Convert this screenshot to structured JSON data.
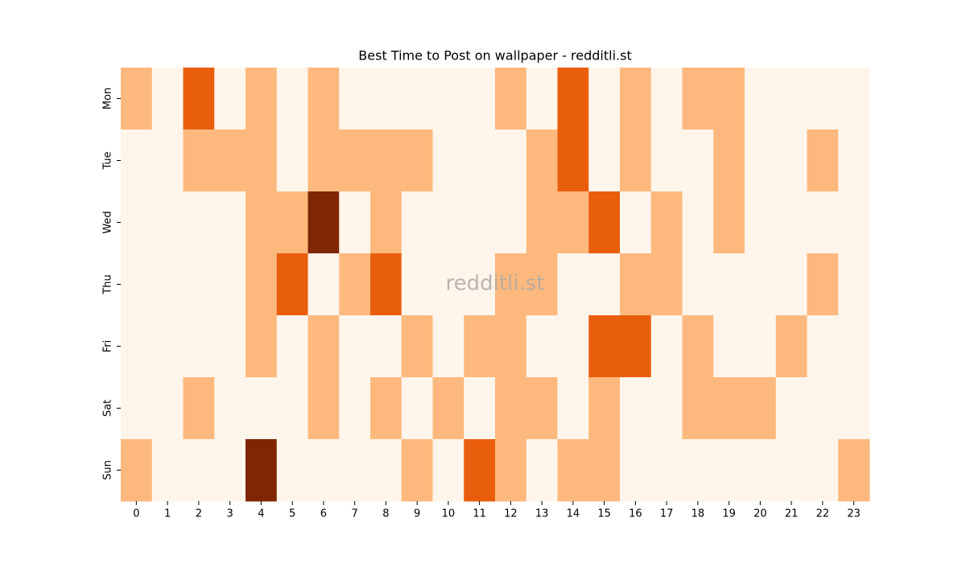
{
  "chart_data": {
    "type": "heatmap",
    "title": "Best Time to Post on wallpaper - redditli.st",
    "watermark": "redditli.st",
    "x_categories": [
      "0",
      "1",
      "2",
      "3",
      "4",
      "5",
      "6",
      "7",
      "8",
      "9",
      "10",
      "11",
      "12",
      "13",
      "14",
      "15",
      "16",
      "17",
      "18",
      "19",
      "20",
      "21",
      "22",
      "23"
    ],
    "y_categories": [
      "Mon",
      "Tue",
      "Wed",
      "Thu",
      "Fri",
      "Sat",
      "Sun"
    ],
    "colors": [
      "#fff5eb",
      "#fdb97d",
      "#e95e0d",
      "#7f2704"
    ],
    "values": [
      [
        1,
        0,
        2,
        0,
        1,
        0,
        1,
        0,
        0,
        0,
        0,
        0,
        1,
        0,
        2,
        0,
        1,
        0,
        1,
        1,
        0,
        0,
        0,
        0
      ],
      [
        0,
        0,
        1,
        1,
        1,
        0,
        1,
        1,
        1,
        1,
        0,
        0,
        0,
        1,
        2,
        0,
        1,
        0,
        0,
        1,
        0,
        0,
        1,
        0
      ],
      [
        0,
        0,
        0,
        0,
        1,
        1,
        3,
        0,
        1,
        0,
        0,
        0,
        0,
        1,
        1,
        2,
        0,
        1,
        0,
        1,
        0,
        0,
        0,
        0
      ],
      [
        0,
        0,
        0,
        0,
        1,
        2,
        0,
        1,
        2,
        0,
        0,
        0,
        1,
        1,
        0,
        0,
        1,
        1,
        0,
        0,
        0,
        0,
        1,
        0
      ],
      [
        0,
        0,
        0,
        0,
        1,
        0,
        1,
        0,
        0,
        1,
        0,
        1,
        1,
        0,
        0,
        2,
        2,
        0,
        1,
        0,
        0,
        1,
        0,
        0
      ],
      [
        0,
        0,
        1,
        0,
        0,
        0,
        1,
        0,
        1,
        0,
        1,
        0,
        1,
        1,
        0,
        1,
        0,
        0,
        1,
        1,
        1,
        0,
        0,
        0
      ],
      [
        1,
        0,
        0,
        0,
        3,
        0,
        0,
        0,
        0,
        1,
        0,
        2,
        1,
        0,
        1,
        1,
        0,
        0,
        0,
        0,
        0,
        0,
        0,
        1
      ]
    ]
  }
}
